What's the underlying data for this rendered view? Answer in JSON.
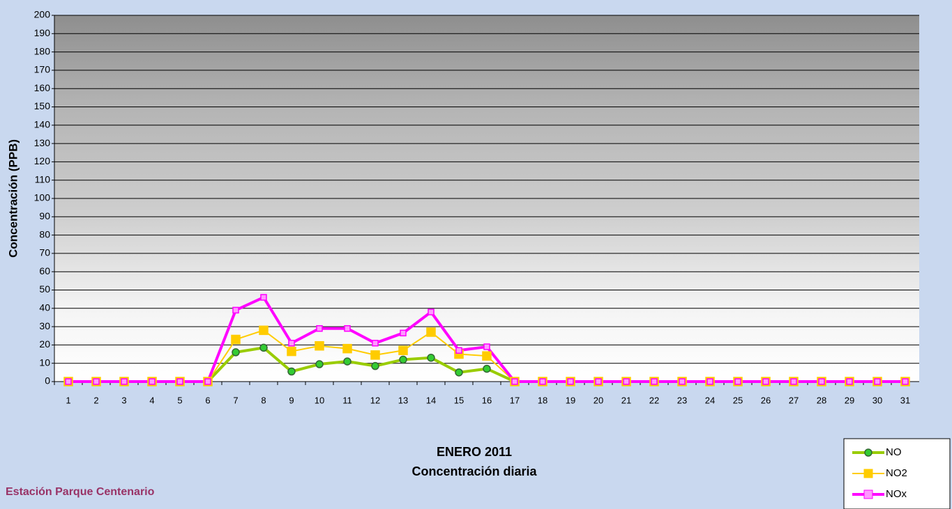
{
  "chart_data": {
    "type": "line",
    "title": "ENERO 2011",
    "subtitle": "Concentración diaria",
    "annotation": "Estación Parque Centenario",
    "y_label": "Concentración  (PPB)",
    "categories": [
      "1",
      "2",
      "3",
      "4",
      "5",
      "6",
      "7",
      "8",
      "9",
      "10",
      "11",
      "12",
      "13",
      "14",
      "15",
      "16",
      "17",
      "18",
      "19",
      "20",
      "21",
      "22",
      "23",
      "24",
      "25",
      "26",
      "27",
      "28",
      "29",
      "30",
      "31"
    ],
    "series": [
      {
        "name": "NO",
        "color": "#99cc00",
        "marker": "circle",
        "marker_fill": "#33cc33",
        "values": [
          0,
          0,
          0,
          0,
          0,
          0,
          16,
          18.5,
          5.5,
          9.5,
          11,
          8.5,
          12,
          13,
          5,
          7,
          0,
          0,
          0,
          0,
          0,
          0,
          0,
          0,
          0,
          0,
          0,
          0,
          0,
          0,
          0
        ]
      },
      {
        "name": "NO2",
        "color": "#ffcc00",
        "marker": "square",
        "marker_fill": "#ffcc00",
        "values": [
          0,
          0,
          0,
          0,
          0,
          0,
          23,
          28,
          16.5,
          19.5,
          18,
          14.5,
          17,
          27,
          15,
          14,
          0,
          0,
          0,
          0,
          0,
          0,
          0,
          0,
          0,
          0,
          0,
          0,
          0,
          0,
          0
        ]
      },
      {
        "name": "NOx",
        "color": "#ff00ff",
        "marker": "square",
        "marker_fill": "#ff99ff",
        "values": [
          0,
          0,
          0,
          0,
          0,
          0,
          39,
          46,
          21,
          29,
          29,
          21,
          26.5,
          38,
          17,
          19,
          0,
          0,
          0,
          0,
          0,
          0,
          0,
          0,
          0,
          0,
          0,
          0,
          0,
          0,
          0
        ]
      }
    ],
    "ylim": [
      0,
      200
    ],
    "yticks": [
      0,
      10,
      20,
      30,
      40,
      50,
      60,
      70,
      80,
      90,
      100,
      110,
      120,
      130,
      140,
      150,
      160,
      170,
      180,
      190,
      200
    ],
    "grid": true,
    "legend": "bottom-right"
  }
}
